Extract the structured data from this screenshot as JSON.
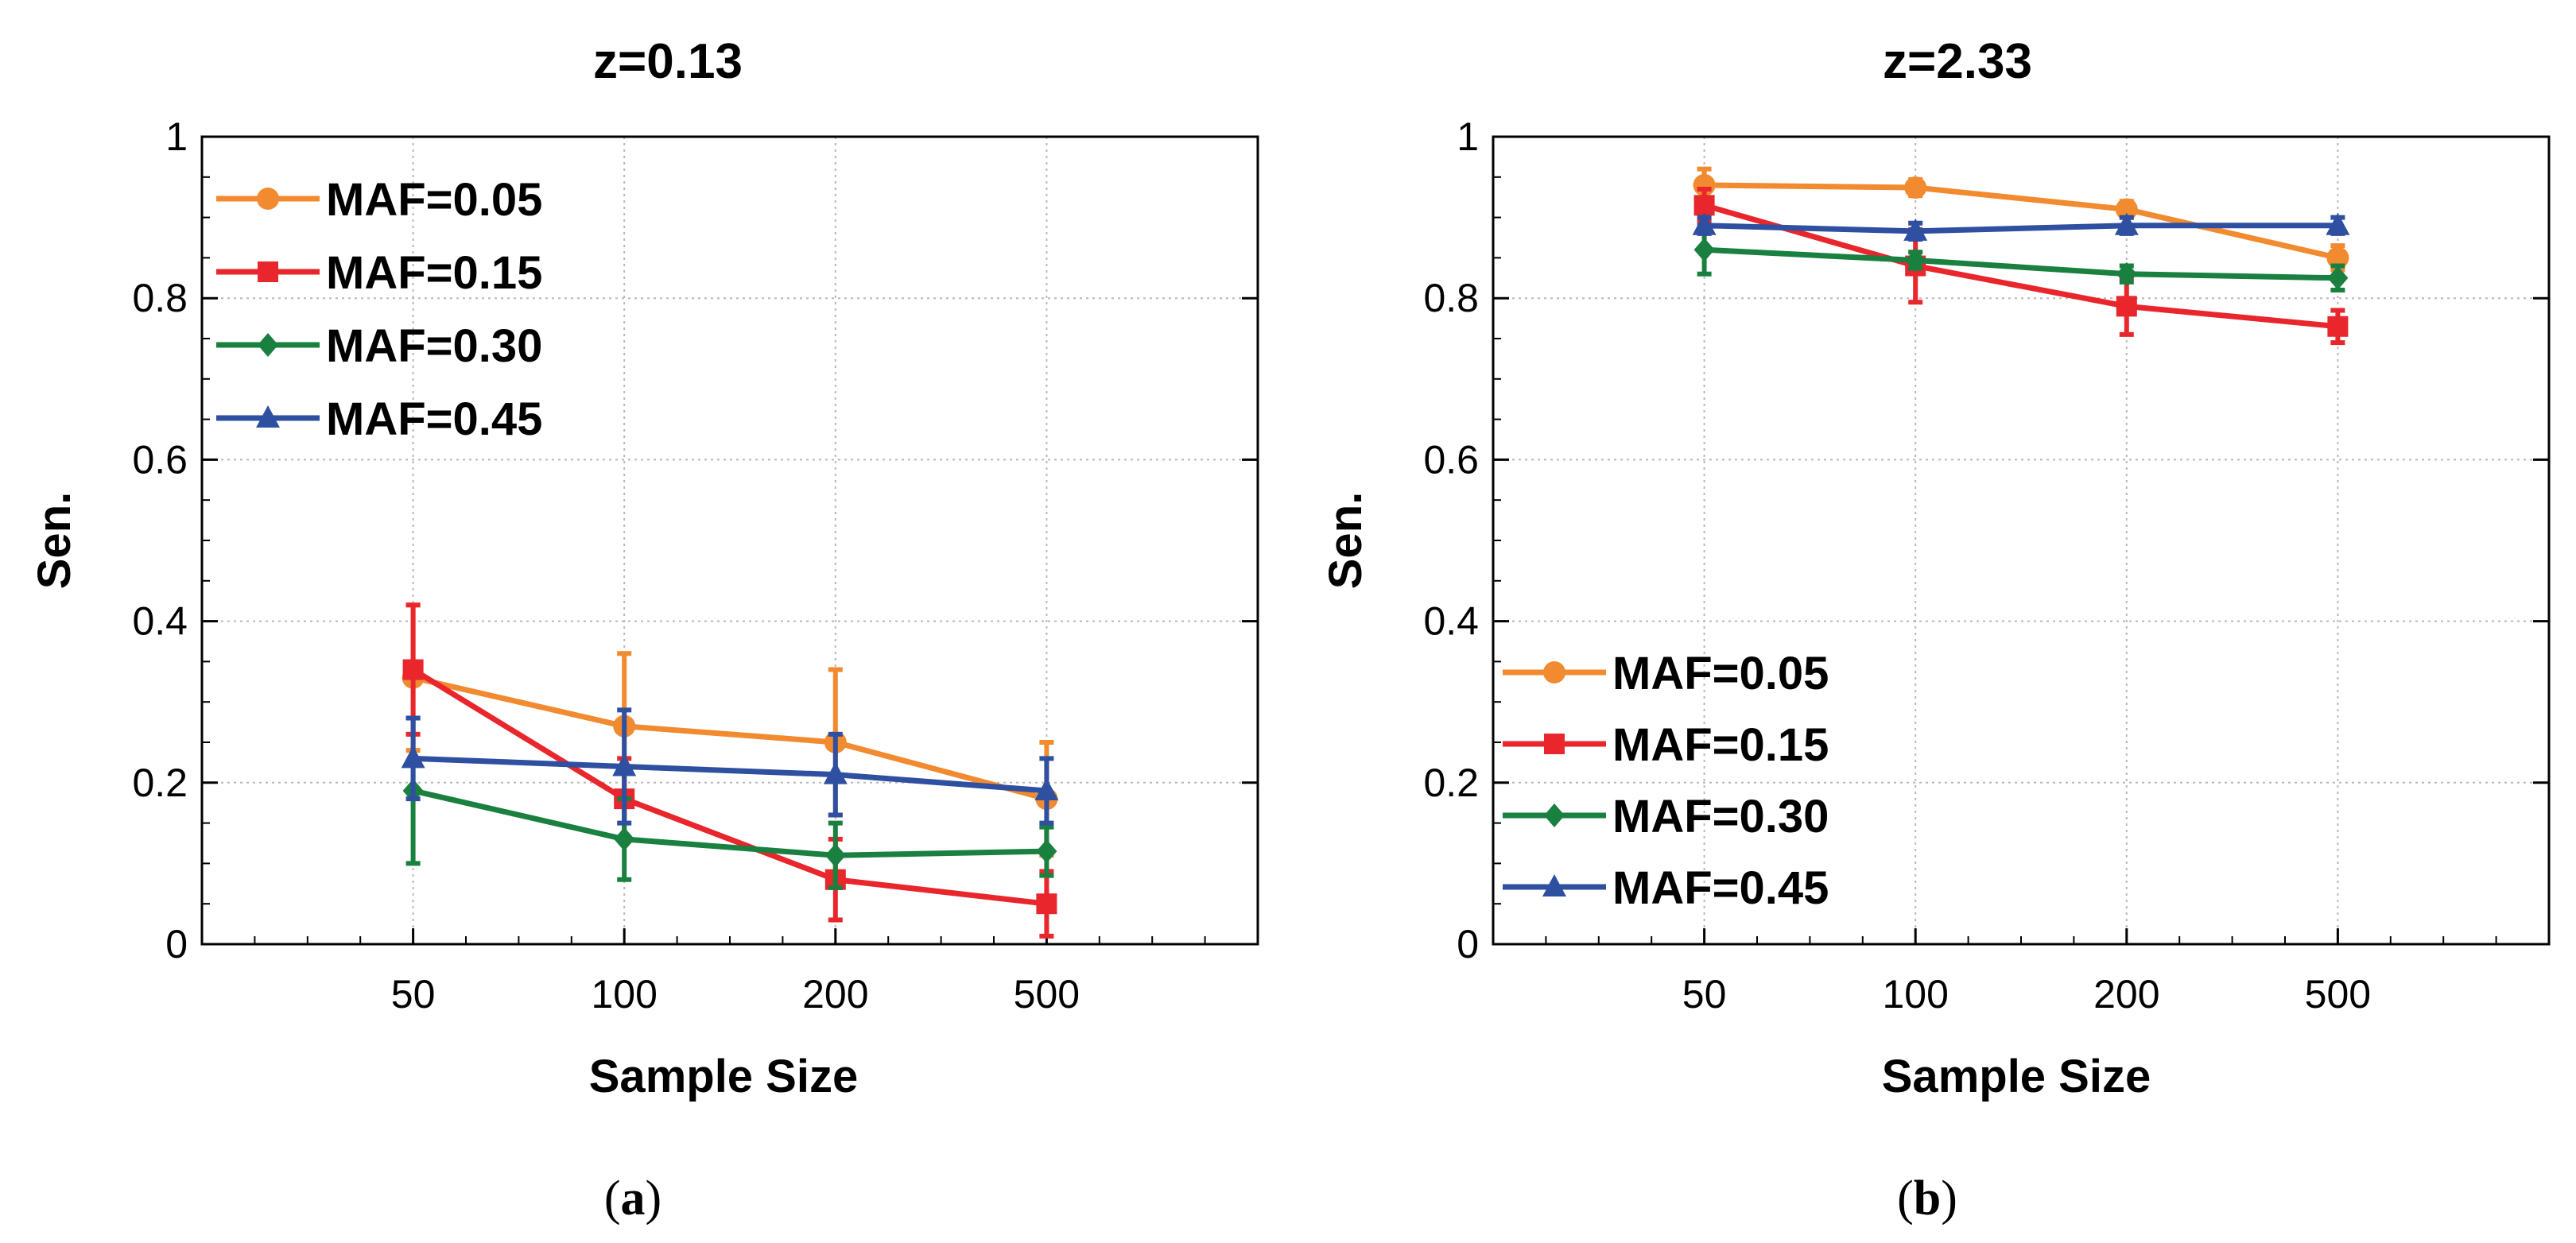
{
  "chart_data": [
    {
      "type": "line",
      "title": "z=0.13",
      "xlabel": "Sample Size",
      "ylabel": "Sen.",
      "categories": [
        "50",
        "100",
        "200",
        "500"
      ],
      "ylim": [
        0,
        1
      ],
      "yticks": [
        "0",
        "0.2",
        "0.4",
        "0.6",
        "0.8",
        "1"
      ],
      "grid": true,
      "legend_position": "top-left",
      "panel_label": "(a)",
      "panel_letter": "a",
      "series": [
        {
          "name": "MAF=0.05",
          "color": "#f28a30",
          "marker": "circle",
          "values": [
            0.33,
            0.27,
            0.25,
            0.18
          ],
          "err": [
            0.09,
            0.09,
            0.09,
            0.07
          ]
        },
        {
          "name": "MAF=0.15",
          "color": "#e8262c",
          "marker": "square",
          "values": [
            0.34,
            0.18,
            0.08,
            0.05
          ],
          "err": [
            0.08,
            0.05,
            0.05,
            0.04
          ]
        },
        {
          "name": "MAF=0.30",
          "color": "#1a8040",
          "marker": "diamond",
          "values": [
            0.19,
            0.13,
            0.11,
            0.115
          ],
          "err": [
            0.09,
            0.05,
            0.04,
            0.03
          ]
        },
        {
          "name": "MAF=0.45",
          "color": "#2f4fa0",
          "marker": "triangle",
          "values": [
            0.23,
            0.22,
            0.21,
            0.19
          ],
          "err": [
            0.05,
            0.07,
            0.05,
            0.04
          ]
        }
      ]
    },
    {
      "type": "line",
      "title": "z=2.33",
      "xlabel": "Sample Size",
      "ylabel": "Sen.",
      "categories": [
        "50",
        "100",
        "200",
        "500"
      ],
      "ylim": [
        0,
        1
      ],
      "yticks": [
        "0",
        "0.2",
        "0.4",
        "0.6",
        "0.8",
        "1"
      ],
      "grid": true,
      "legend_position": "bottom-left",
      "panel_label": "(b)",
      "panel_letter": "b",
      "series": [
        {
          "name": "MAF=0.05",
          "color": "#f28a30",
          "marker": "circle",
          "values": [
            0.94,
            0.937,
            0.91,
            0.85
          ],
          "err": [
            0.02,
            0.01,
            0.01,
            0.015
          ]
        },
        {
          "name": "MAF=0.15",
          "color": "#e8262c",
          "marker": "square",
          "values": [
            0.915,
            0.84,
            0.79,
            0.765
          ],
          "err": [
            0.02,
            0.045,
            0.035,
            0.02
          ]
        },
        {
          "name": "MAF=0.30",
          "color": "#1a8040",
          "marker": "diamond",
          "values": [
            0.86,
            0.847,
            0.83,
            0.825
          ],
          "err": [
            0.03,
            0.01,
            0.01,
            0.015
          ]
        },
        {
          "name": "MAF=0.45",
          "color": "#2f4fa0",
          "marker": "triangle",
          "values": [
            0.89,
            0.883,
            0.89,
            0.89
          ],
          "err": [
            0.01,
            0.01,
            0.01,
            0.01
          ]
        }
      ]
    }
  ]
}
